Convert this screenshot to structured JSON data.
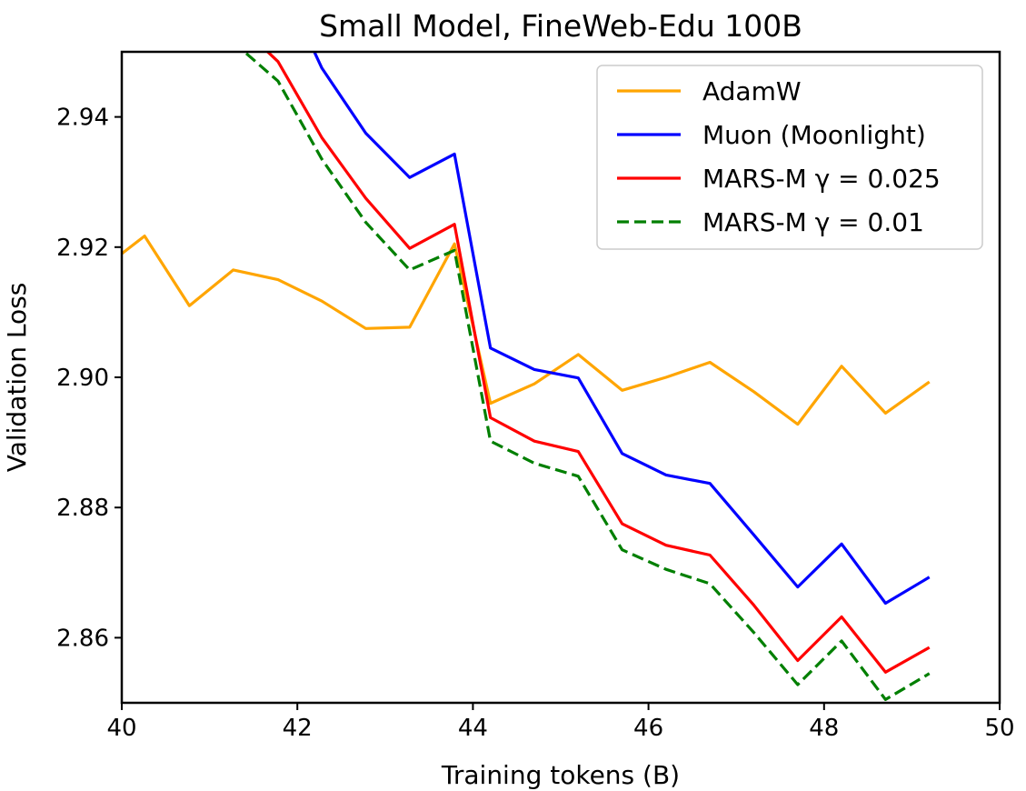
{
  "chart_data": {
    "type": "line",
    "title": "Small Model, FineWeb-Edu 100B",
    "xlabel": "Training tokens (B)",
    "ylabel": "Validation Loss",
    "xlim": [
      40,
      50
    ],
    "ylim": [
      2.85,
      2.95
    ],
    "xticks": [
      "40",
      "42",
      "44",
      "46",
      "48",
      "50"
    ],
    "yticks": [
      "2.86",
      "2.88",
      "2.90",
      "2.92",
      "2.94"
    ],
    "grid": false,
    "legend_position": "top-right",
    "x": [
      39.76,
      40.26,
      40.77,
      41.27,
      41.78,
      42.28,
      42.78,
      43.28,
      43.79,
      44.2,
      44.7,
      45.2,
      45.7,
      46.2,
      46.7,
      47.2,
      47.7,
      48.2,
      48.7,
      49.2
    ],
    "series": [
      {
        "name": "AdamW",
        "color": "#FFA500",
        "dash": "solid",
        "values": [
          2.9165,
          2.9217,
          2.911,
          2.9165,
          2.915,
          2.9117,
          2.9075,
          2.9077,
          2.9205,
          2.896,
          2.899,
          2.9035,
          2.898,
          2.9,
          2.9023,
          2.8978,
          2.8928,
          2.9017,
          2.8945,
          2.8993
        ]
      },
      {
        "name": "Muon (Moonlight)",
        "color": "#0000FF",
        "dash": "solid",
        "values": [
          null,
          null,
          null,
          null,
          2.962,
          2.9475,
          2.9375,
          2.9307,
          2.9343,
          2.9045,
          2.9012,
          2.8999,
          2.8883,
          2.885,
          2.8837,
          2.8758,
          2.8678,
          2.8744,
          2.8653,
          2.8693
        ]
      },
      {
        "name": "MARS-M γ = 0.025",
        "color": "#FF0000",
        "dash": "solid",
        "values": [
          null,
          null,
          null,
          2.955,
          2.9485,
          2.9368,
          2.9275,
          2.9198,
          2.9235,
          2.8938,
          2.8902,
          2.8886,
          2.8775,
          2.8742,
          2.8727,
          2.865,
          2.8565,
          2.8632,
          2.8547,
          2.8585
        ]
      },
      {
        "name": "MARS-M γ = 0.01",
        "color": "#007F00",
        "dash": "dashed",
        "values": [
          null,
          null,
          null,
          2.9515,
          2.9455,
          2.9335,
          2.9238,
          2.9165,
          2.9195,
          2.8902,
          2.8868,
          2.8848,
          2.8735,
          2.8705,
          2.8683,
          2.8608,
          2.8528,
          2.8595,
          2.8505,
          2.8545
        ]
      }
    ]
  }
}
